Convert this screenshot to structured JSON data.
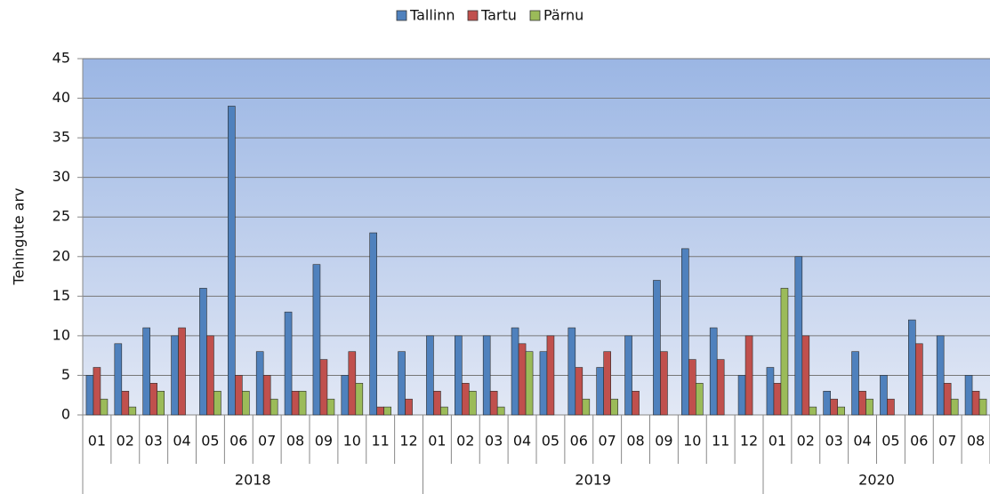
{
  "chart_data": {
    "type": "bar",
    "y_label": "Tehingute arv",
    "groups": [
      {
        "label": "2018",
        "categories": [
          "01",
          "02",
          "03",
          "04",
          "05",
          "06",
          "07",
          "08",
          "09",
          "10",
          "11",
          "12"
        ]
      },
      {
        "label": "2019",
        "categories": [
          "01",
          "02",
          "03",
          "04",
          "05",
          "06",
          "07",
          "08",
          "09",
          "10",
          "11",
          "12"
        ]
      },
      {
        "label": "2020",
        "categories": [
          "01",
          "02",
          "03",
          "04",
          "05",
          "06",
          "07",
          "08"
        ]
      }
    ],
    "series": [
      {
        "name": "Tallinn",
        "color": "#4f81bd",
        "values": [
          5,
          9,
          11,
          10,
          16,
          39,
          8,
          13,
          19,
          5,
          23,
          8,
          10,
          10,
          10,
          11,
          8,
          11,
          6,
          10,
          17,
          21,
          11,
          5,
          6,
          20,
          3,
          8,
          5,
          12,
          10,
          5
        ]
      },
      {
        "name": "Tartu",
        "color": "#c0504d",
        "values": [
          6,
          3,
          4,
          11,
          10,
          5,
          5,
          3,
          7,
          8,
          1,
          2,
          3,
          4,
          3,
          9,
          10,
          6,
          8,
          3,
          8,
          7,
          7,
          10,
          4,
          10,
          2,
          3,
          2,
          9,
          4,
          3
        ]
      },
      {
        "name": "Pärnu",
        "color": "#9bbb59",
        "values": [
          2,
          1,
          3,
          0,
          3,
          3,
          2,
          3,
          2,
          4,
          1,
          0,
          1,
          3,
          1,
          8,
          0,
          2,
          2,
          0,
          0,
          4,
          0,
          0,
          16,
          1,
          1,
          2,
          0,
          0,
          2,
          2
        ]
      }
    ],
    "ylim": [
      0,
      45
    ],
    "yticks": [
      0,
      5,
      10,
      15,
      20,
      25,
      30,
      35,
      40,
      45
    ],
    "grid": true,
    "legend": "top"
  }
}
